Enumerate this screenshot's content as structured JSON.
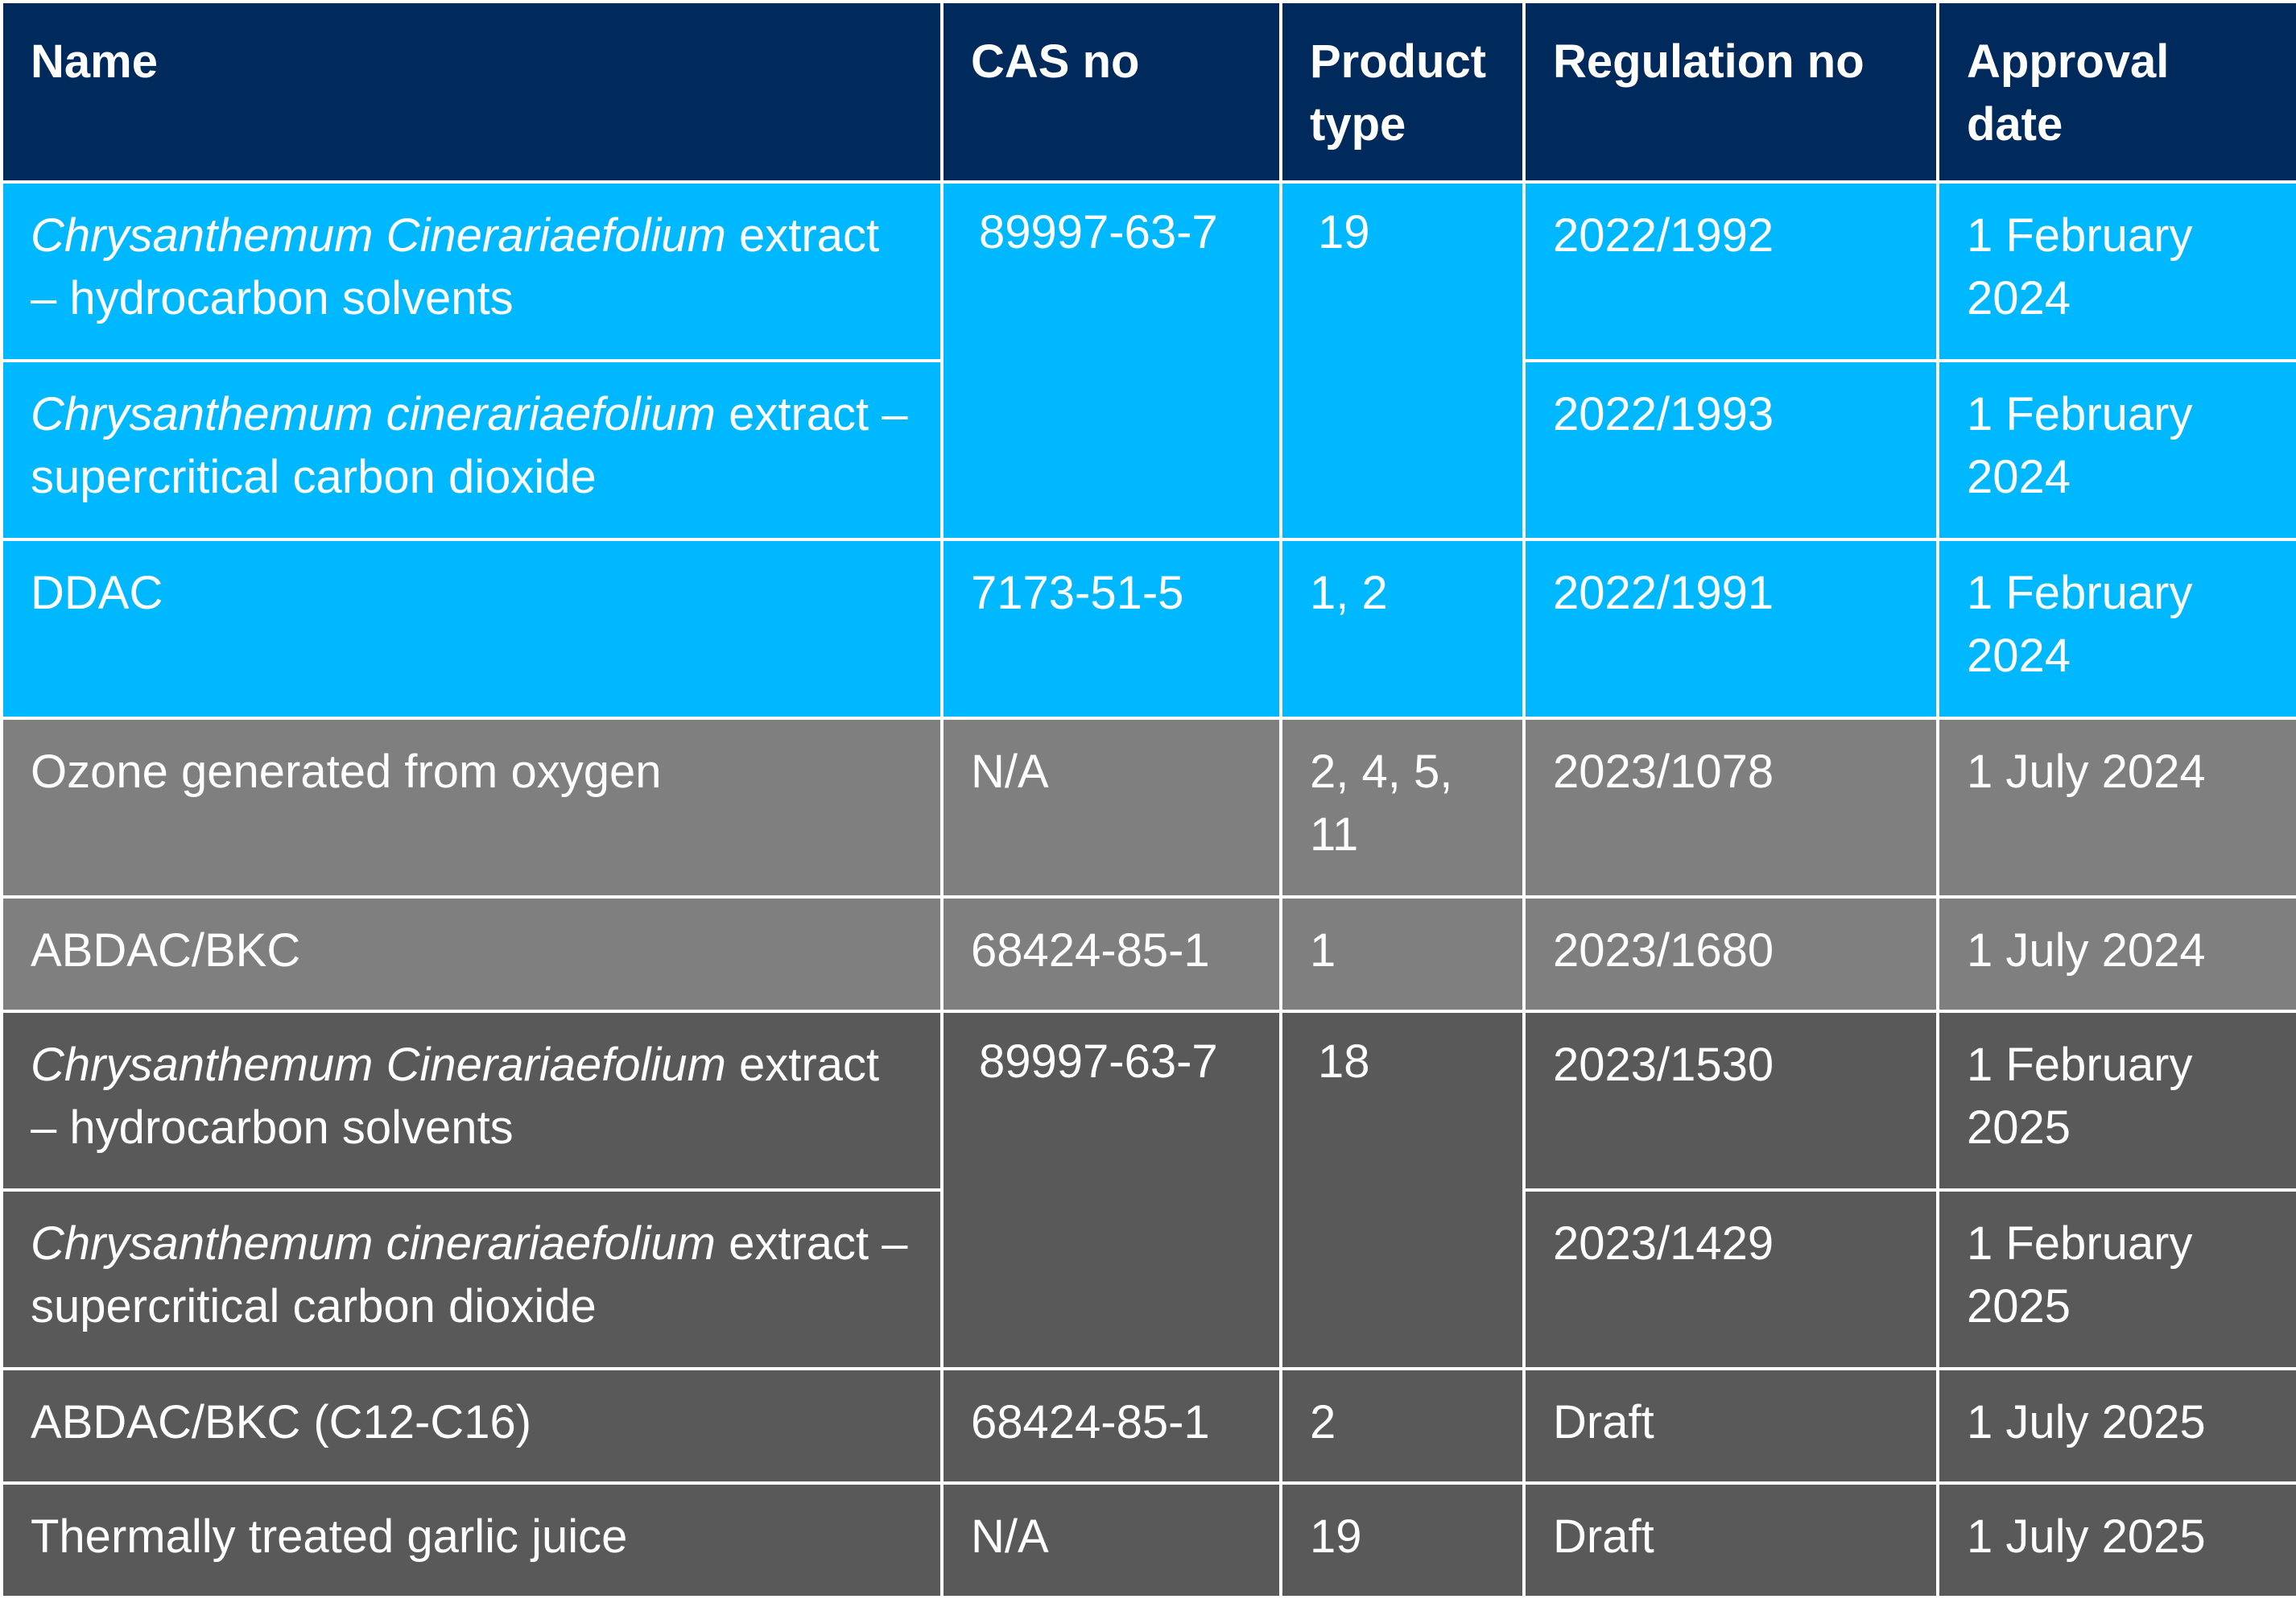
{
  "columns": {
    "name": "Name",
    "cas": "CAS no",
    "type_line1": "Product",
    "type_line2": "type",
    "reg": "Regulation no",
    "date_line1": "Approval",
    "date_line2": "date"
  },
  "rows": [
    {
      "name_italic": "Chrysanthemum Cinerariaefolium",
      "name_rest": " extract – hydrocarbon solvents",
      "cas": "89997-63-7",
      "type": "19",
      "reg": "2022/1992",
      "date": "1 February 2024"
    },
    {
      "name_italic": "Chrysanthemum cinerariaefolium",
      "name_rest": " extract – supercritical carbon dioxide",
      "reg": "2022/1993",
      "date": "1 February 2024"
    },
    {
      "name": "DDAC",
      "cas": "7173-51-5",
      "type": "1, 2",
      "reg": "2022/1991",
      "date": "1 February 2024"
    },
    {
      "name": "Ozone generated from oxygen",
      "cas": "N/A",
      "type": "2, 4, 5, 11",
      "reg": "2023/1078",
      "date": "1 July 2024"
    },
    {
      "name": "ABDAC/BKC",
      "cas": "68424-85-1",
      "type": "1",
      "reg": "2023/1680",
      "date": "1 July 2024"
    },
    {
      "name_italic": "Chrysanthemum Cinerariaefolium",
      "name_rest": " extract – hydrocarbon solvents",
      "cas": "89997-63-7",
      "type": "18",
      "reg": "2023/1530",
      "date": "1 February 2025"
    },
    {
      "name_italic": "Chrysanthemum cinerariaefolium",
      "name_rest": " extract – supercritical carbon dioxide",
      "reg": "2023/1429",
      "date": "1 February 2025"
    },
    {
      "name": "ABDAC/BKC (C12-C16)",
      "cas": "68424-85-1",
      "type": "2",
      "reg": "Draft",
      "date": "1 July 2025"
    },
    {
      "name": "Thermally treated garlic juice",
      "cas": "N/A",
      "type": "19",
      "reg": "Draft",
      "date": "1 July 2025"
    }
  ],
  "colors": {
    "header": "#002a5c",
    "group_2024_feb": "#00b8ff",
    "group_2024_jul": "#7f7f7f",
    "group_2025": "#595959",
    "grid": "#ffffff",
    "text": "#ffffff"
  }
}
